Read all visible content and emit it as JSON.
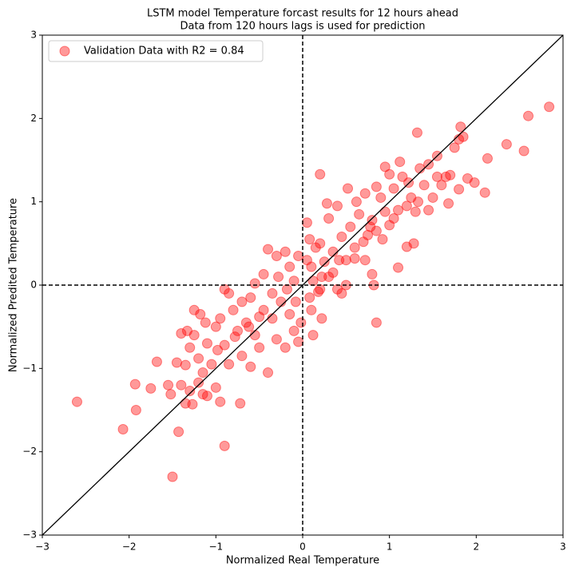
{
  "chart_data": {
    "type": "scatter",
    "title": "LSTM model Temperature forcast results for 12 hours ahead",
    "subtitle": "Data from 120 hours lags is used for prediction",
    "xlabel": "Normalized Real Temperature",
    "ylabel": "Normalized Predited Temperature",
    "xlim": [
      -3,
      3
    ],
    "ylim": [
      -3,
      3
    ],
    "xticks": [
      {
        "value": -3,
        "label": "−3"
      },
      {
        "value": -2,
        "label": "−2"
      },
      {
        "value": -1,
        "label": "−1"
      },
      0,
      1,
      2,
      3
    ],
    "yticks": [
      {
        "value": -3,
        "label": "−3"
      },
      {
        "value": -2,
        "label": "−2"
      },
      {
        "value": -1,
        "label": "−1"
      },
      0,
      1,
      2,
      3
    ],
    "legend": "upper left",
    "x": [
      -2.6,
      -2.07,
      -1.92,
      -1.93,
      -1.68,
      -1.5,
      -1.43,
      -0.9,
      -0.72,
      2.84,
      2.6,
      2.55,
      2.35,
      2.1,
      2.13,
      1.32,
      0.2,
      0.85,
      0.82,
      0.8,
      1.1,
      0.12,
      0.22,
      1.82,
      1.98,
      1.8,
      -1.75,
      -1.55,
      -1.52,
      -1.4,
      -1.35,
      -1.3,
      -1.27,
      -1.2,
      -1.15,
      -1.1,
      -1.0,
      -0.95,
      -1.35,
      -1.3,
      -1.33,
      -1.25,
      -1.2,
      -1.15,
      -1.1,
      -1.05,
      -1.0,
      -0.95,
      -0.9,
      -0.85,
      -0.8,
      -0.75,
      -0.7,
      -0.65,
      -0.6,
      -0.55,
      -0.5,
      -0.45,
      -0.4,
      -0.35,
      -0.3,
      -0.25,
      -0.2,
      -0.15,
      -0.1,
      -0.05,
      -1.25,
      -1.18,
      -1.12,
      -0.9,
      -0.85,
      -0.7,
      -0.6,
      -0.55,
      -0.45,
      -0.4,
      -0.3,
      -0.2,
      -0.15,
      -0.1,
      -0.05,
      -1.4,
      -1.45,
      -0.98,
      -0.78,
      -0.62,
      -0.5,
      -0.35,
      -0.28,
      -0.18,
      -0.08,
      -0.02,
      0.05,
      0.1,
      0.15,
      0.2,
      0.25,
      0.3,
      0.35,
      0.4,
      0.45,
      0.5,
      0.55,
      0.6,
      0.65,
      0.7,
      0.75,
      0.8,
      0.85,
      0.9,
      0.95,
      1.0,
      1.05,
      1.1,
      1.15,
      1.2,
      1.25,
      1.3,
      1.35,
      1.4,
      1.45,
      1.5,
      1.55,
      1.6,
      1.65,
      1.7,
      1.75,
      1.8,
      1.85,
      1.9,
      0.05,
      0.08,
      0.12,
      0.18,
      0.28,
      0.3,
      0.4,
      0.52,
      0.62,
      0.72,
      0.85,
      0.95,
      1.0,
      1.12,
      1.22,
      1.33,
      1.45,
      1.55,
      1.68,
      1.2,
      1.28,
      0.92,
      0.72,
      0.5,
      0.45,
      0.35,
      0.22,
      0.08,
      0.1,
      0.2,
      0.42,
      0.6,
      0.78,
      1.05
    ],
    "series": [
      {
        "name": "Validation Data with R2 = 0.84",
        "color": "#ff0000",
        "values": [
          -1.4,
          -1.73,
          -1.5,
          -1.19,
          -0.92,
          -2.3,
          -1.76,
          -1.93,
          -1.42,
          2.14,
          2.03,
          1.61,
          1.69,
          1.11,
          1.52,
          1.83,
          1.33,
          -0.45,
          0.0,
          0.13,
          0.21,
          -0.6,
          -0.4,
          1.9,
          1.23,
          1.15,
          -1.24,
          -1.2,
          -1.31,
          -1.2,
          -1.42,
          -1.27,
          -1.43,
          -1.17,
          -1.31,
          -1.33,
          -1.23,
          -1.4,
          -0.96,
          -0.75,
          -0.55,
          -0.6,
          -0.88,
          -1.05,
          -0.7,
          -0.95,
          -0.5,
          -0.4,
          -0.72,
          -0.95,
          -0.3,
          -0.55,
          -0.85,
          -0.45,
          -0.98,
          -0.6,
          -0.75,
          -0.3,
          -1.05,
          -0.4,
          -0.65,
          -0.2,
          -0.75,
          -0.35,
          -0.55,
          -0.68,
          -0.3,
          -0.35,
          -0.45,
          -0.05,
          -0.1,
          -0.2,
          -0.15,
          0.02,
          0.13,
          0.43,
          0.35,
          0.4,
          0.22,
          0.05,
          0.35,
          -0.58,
          -0.93,
          -0.78,
          -0.62,
          -0.5,
          -0.38,
          -0.1,
          0.1,
          -0.05,
          -0.2,
          -0.45,
          0.3,
          0.22,
          0.45,
          0.5,
          0.28,
          0.1,
          0.4,
          -0.05,
          0.58,
          0.3,
          0.7,
          0.32,
          0.85,
          0.52,
          0.6,
          0.78,
          0.65,
          1.05,
          0.88,
          0.72,
          1.16,
          0.9,
          1.3,
          0.95,
          1.05,
          0.88,
          1.4,
          1.2,
          1.45,
          1.05,
          1.55,
          1.2,
          1.3,
          1.32,
          1.65,
          1.75,
          1.78,
          1.28,
          0.75,
          0.55,
          0.05,
          -0.08,
          0.98,
          0.8,
          0.95,
          1.16,
          1.0,
          1.1,
          1.18,
          1.42,
          1.33,
          1.48,
          1.23,
          1.0,
          0.9,
          1.3,
          0.98,
          0.46,
          0.5,
          0.55,
          0.3,
          0.0,
          -0.1,
          0.15,
          0.1,
          -0.15,
          -0.3,
          -0.05,
          0.3,
          0.45,
          0.7,
          0.8
        ]
      }
    ]
  }
}
